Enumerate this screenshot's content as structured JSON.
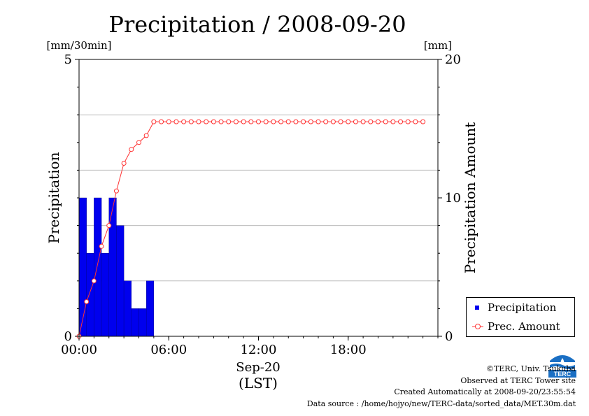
{
  "chart_data": {
    "type": "bar+line",
    "title": "Precipitation / 2008-09-20",
    "left_axis": {
      "label": "Precipitation",
      "unit": "[mm/30min]",
      "ylim": [
        0,
        5
      ],
      "ticks": [
        "0",
        "5"
      ]
    },
    "right_axis": {
      "label": "Precipitation Amount",
      "unit": "[mm]",
      "ylim": [
        0,
        20
      ],
      "ticks": [
        "0",
        "10",
        "20"
      ]
    },
    "x_axis": {
      "label": "Sep-20",
      "sublabel": "(LST)",
      "range_hours": [
        0,
        24
      ],
      "ticks": [
        "00:00",
        "06:00",
        "12:00",
        "18:00"
      ]
    },
    "grid": "horizontal",
    "legend_position": "bottom-right",
    "series": [
      {
        "name": "Precipitation",
        "axis": "left",
        "type": "bar",
        "color": "#0000ee",
        "x_hours": [
          0.0,
          0.5,
          1.0,
          1.5,
          2.0,
          2.5,
          3.0,
          3.5,
          4.0,
          4.5
        ],
        "values": [
          2.5,
          1.5,
          2.5,
          1.5,
          2.5,
          2.0,
          1.0,
          0.5,
          0.5,
          1.0
        ]
      },
      {
        "name": "Prec. Amount",
        "axis": "right",
        "type": "line",
        "color": "#ff3333",
        "x_hours": [
          0.0,
          0.5,
          1.0,
          1.5,
          2.0,
          2.5,
          3.0,
          3.5,
          4.0,
          4.5,
          5.0,
          5.5,
          6.0,
          6.5,
          7.0,
          7.5,
          8.0,
          8.5,
          9.0,
          9.5,
          10.0,
          10.5,
          11.0,
          11.5,
          12.0,
          12.5,
          13.0,
          13.5,
          14.0,
          14.5,
          15.0,
          15.5,
          16.0,
          16.5,
          17.0,
          17.5,
          18.0,
          18.5,
          19.0,
          19.5,
          20.0,
          20.5,
          21.0,
          21.5,
          22.0,
          22.5,
          23.0
        ],
        "values": [
          0,
          2.5,
          4,
          6.5,
          8,
          10.5,
          12.5,
          13.5,
          14,
          14.5,
          15.5,
          15.5,
          15.5,
          15.5,
          15.5,
          15.5,
          15.5,
          15.5,
          15.5,
          15.5,
          15.5,
          15.5,
          15.5,
          15.5,
          15.5,
          15.5,
          15.5,
          15.5,
          15.5,
          15.5,
          15.5,
          15.5,
          15.5,
          15.5,
          15.5,
          15.5,
          15.5,
          15.5,
          15.5,
          15.5,
          15.5,
          15.5,
          15.5,
          15.5,
          15.5,
          15.5,
          15.5
        ]
      }
    ]
  },
  "legend": {
    "items": [
      "Precipitation",
      "Prec. Amount"
    ]
  },
  "credits": {
    "copyright": "©TERC, Univ. Tsukuba",
    "site": "Observed at TERC Tower site",
    "created": "Created Automatically at 2008-09-20/23:55:54",
    "source": "Data source : /home/hojyo/new/TERC-data/sorted_data/MET.30m.dat"
  },
  "logo": {
    "text": "TERC",
    "color": "#1a6fc4"
  }
}
